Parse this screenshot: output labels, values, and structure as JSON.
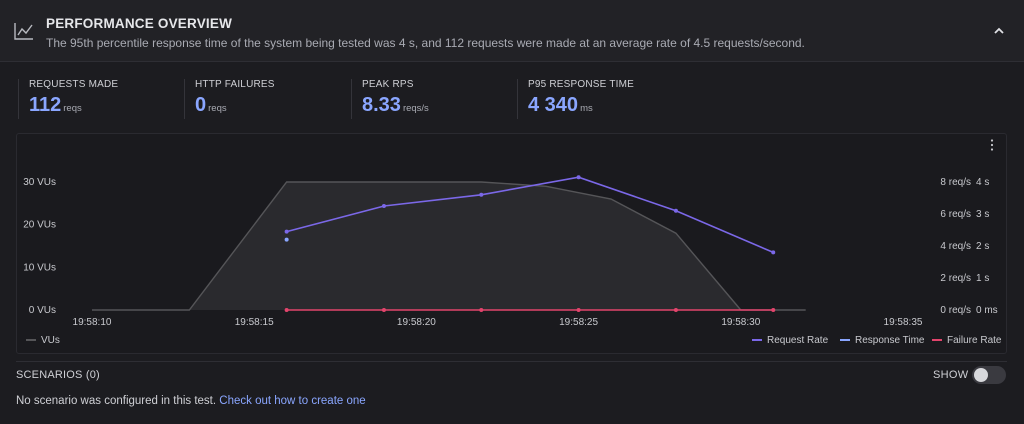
{
  "header": {
    "title": "PERFORMANCE OVERVIEW",
    "subtitle": "The 95th percentile response time of the system being tested was 4 s, and 112 requests were made at an average rate of 4.5 requests/second.",
    "icon": "line-chart-icon",
    "collapse_icon": "chevron-up-icon"
  },
  "stats": [
    {
      "label": "REQUESTS MADE",
      "value": "112",
      "unit": "reqs"
    },
    {
      "label": "HTTP FAILURES",
      "value": "0",
      "unit": "reqs"
    },
    {
      "label": "PEAK RPS",
      "value": "8.33",
      "unit": "reqs/s"
    },
    {
      "label": "P95 RESPONSE TIME",
      "value": "4 340",
      "unit": "ms"
    }
  ],
  "chart_data": {
    "type": "line",
    "x_ticks": [
      "19:58:10",
      "19:58:15",
      "19:58:20",
      "19:58:25",
      "19:58:30",
      "19:58:35"
    ],
    "y_left_ticks": [
      "0 VUs",
      "10 VUs",
      "20 VUs",
      "30 VUs"
    ],
    "y_rate_ticks": [
      "0 req/s",
      "2 req/s",
      "4 req/s",
      "6 req/s",
      "8 req/s"
    ],
    "y_time_ticks": [
      "0 ms",
      "1 s",
      "2 s",
      "3 s",
      "4 s"
    ],
    "x_range": [
      10,
      35
    ],
    "vus_range": [
      0,
      30
    ],
    "rate_range": [
      0,
      8
    ],
    "time_range": [
      0,
      4
    ],
    "series": [
      {
        "name": "VUs",
        "axis": "vus",
        "color": "#555558",
        "type": "area",
        "x": [
          10,
          13,
          16,
          20,
          22,
          24,
          26,
          28,
          30,
          32
        ],
        "y": [
          0,
          0,
          30,
          30,
          30,
          29,
          26,
          18,
          0,
          0
        ]
      },
      {
        "name": "Request Rate",
        "axis": "rate",
        "color": "#7b68e8",
        "type": "line",
        "x": [
          16,
          19,
          22,
          25,
          28,
          31
        ],
        "y": [
          4.9,
          6.5,
          7.2,
          8.3,
          6.2,
          3.6
        ]
      },
      {
        "name": "Response Time",
        "axis": "time",
        "color": "#8aa6ff",
        "type": "point",
        "x": [
          16
        ],
        "y": [
          2.2
        ]
      },
      {
        "name": "Failure Rate",
        "axis": "rate",
        "color": "#e2446c",
        "type": "line",
        "x": [
          16,
          19,
          22,
          25,
          28,
          31
        ],
        "y": [
          0,
          0,
          0,
          0,
          0,
          0
        ]
      }
    ],
    "legend_left": "VUs",
    "legend_right": [
      "Request Rate",
      "Response Time",
      "Failure Rate"
    ]
  },
  "scenarios": {
    "title": "SCENARIOS (0)",
    "toggle_label": "SHOW",
    "message": "No scenario was configured in this test.",
    "link": "Check out how to create one"
  }
}
